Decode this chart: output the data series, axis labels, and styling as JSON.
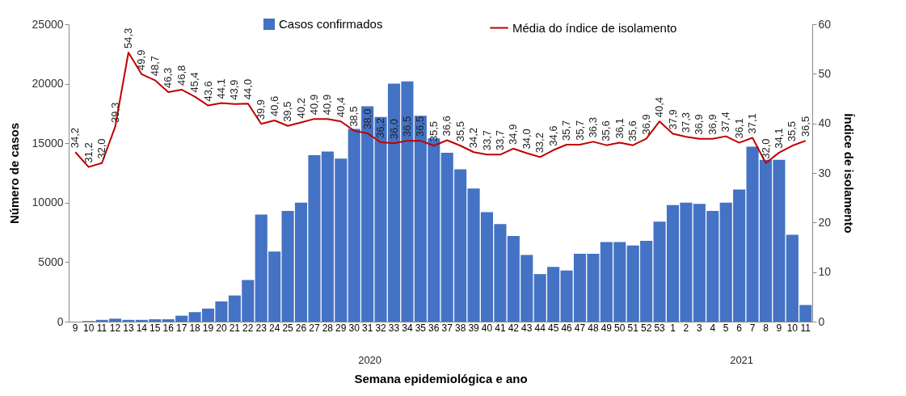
{
  "chart_data": {
    "type": "bar",
    "categories": [
      "9",
      "10",
      "11",
      "12",
      "13",
      "14",
      "15",
      "16",
      "17",
      "18",
      "19",
      "20",
      "21",
      "22",
      "23",
      "24",
      "25",
      "26",
      "27",
      "28",
      "29",
      "30",
      "31",
      "32",
      "33",
      "34",
      "35",
      "36",
      "37",
      "38",
      "39",
      "40",
      "41",
      "42",
      "43",
      "44",
      "45",
      "46",
      "47",
      "48",
      "49",
      "50",
      "51",
      "52",
      "53",
      "1",
      "2",
      "3",
      "4",
      "5",
      "6",
      "7",
      "8",
      "9",
      "10",
      "11"
    ],
    "series": [
      {
        "name": "Casos confirmados",
        "color": "#4472c4",
        "values": [
          0,
          50,
          150,
          250,
          150,
          150,
          200,
          200,
          500,
          800,
          1100,
          1700,
          2200,
          3500,
          9000,
          5900,
          9300,
          10000,
          14000,
          14300,
          13700,
          16200,
          18100,
          17200,
          20000,
          20200,
          17300,
          15400,
          14200,
          12800,
          11200,
          9200,
          8200,
          7200,
          5600,
          4000,
          4600,
          4300,
          5700,
          5700,
          6700,
          6700,
          6400,
          6800,
          8400,
          9800,
          10000,
          9900,
          9300,
          10000,
          11100,
          14700,
          13600,
          13600,
          7300,
          1400
        ]
      },
      {
        "name": "Média do índice de isolamento",
        "type": "line",
        "axis": "y2",
        "color": "#c00000",
        "values": [
          34.2,
          31.2,
          32.0,
          39.3,
          54.3,
          49.9,
          48.7,
          46.3,
          46.8,
          45.4,
          43.6,
          44.1,
          43.9,
          44.0,
          39.9,
          40.6,
          39.5,
          40.2,
          40.9,
          40.9,
          40.4,
          38.5,
          38.0,
          36.2,
          36.0,
          36.5,
          36.5,
          35.5,
          36.6,
          35.5,
          34.2,
          33.7,
          33.7,
          34.9,
          34.0,
          33.2,
          34.6,
          35.7,
          35.7,
          36.3,
          35.6,
          36.1,
          35.6,
          36.9,
          40.4,
          37.9,
          37.3,
          36.9,
          36.9,
          37.4,
          36.1,
          37.1,
          32.0,
          34.1,
          35.5,
          36.5
        ],
        "value_labels": [
          "34,2",
          "31,2",
          "32,0",
          "39,3",
          "54,3",
          "49,9",
          "48,7",
          "46,3",
          "46,8",
          "45,4",
          "43,6",
          "44,1",
          "43,9",
          "44,0",
          "39,9",
          "40,6",
          "39,5",
          "40,2",
          "40,9",
          "40,9",
          "40,4",
          "38,5",
          "38,0",
          "36,2",
          "36,0",
          "36,5",
          "36,5",
          "35,5",
          "36,6",
          "35,5",
          "34,2",
          "33,7",
          "33,7",
          "34,9",
          "34,0",
          "33,2",
          "34,6",
          "35,7",
          "35,7",
          "36,3",
          "35,6",
          "36,1",
          "35,6",
          "36,9",
          "40,4",
          "37,9",
          "37,3",
          "36,9",
          "36,9",
          "37,4",
          "36,1",
          "37,1",
          "32,0",
          "34,1",
          "35,5",
          "36,5"
        ]
      }
    ],
    "xlabel": "Semana epidemiológica e ano",
    "ylabel": "Número de casos",
    "y2label": "Índice de isolamento",
    "ylim": [
      0,
      25000
    ],
    "yticks": [
      0,
      5000,
      10000,
      15000,
      20000,
      25000
    ],
    "y2lim": [
      0,
      60
    ],
    "y2ticks": [
      0,
      10,
      20,
      30,
      40,
      50,
      60
    ],
    "annotations": [
      "2020",
      "2021"
    ],
    "legend": "top right",
    "grid": false
  }
}
